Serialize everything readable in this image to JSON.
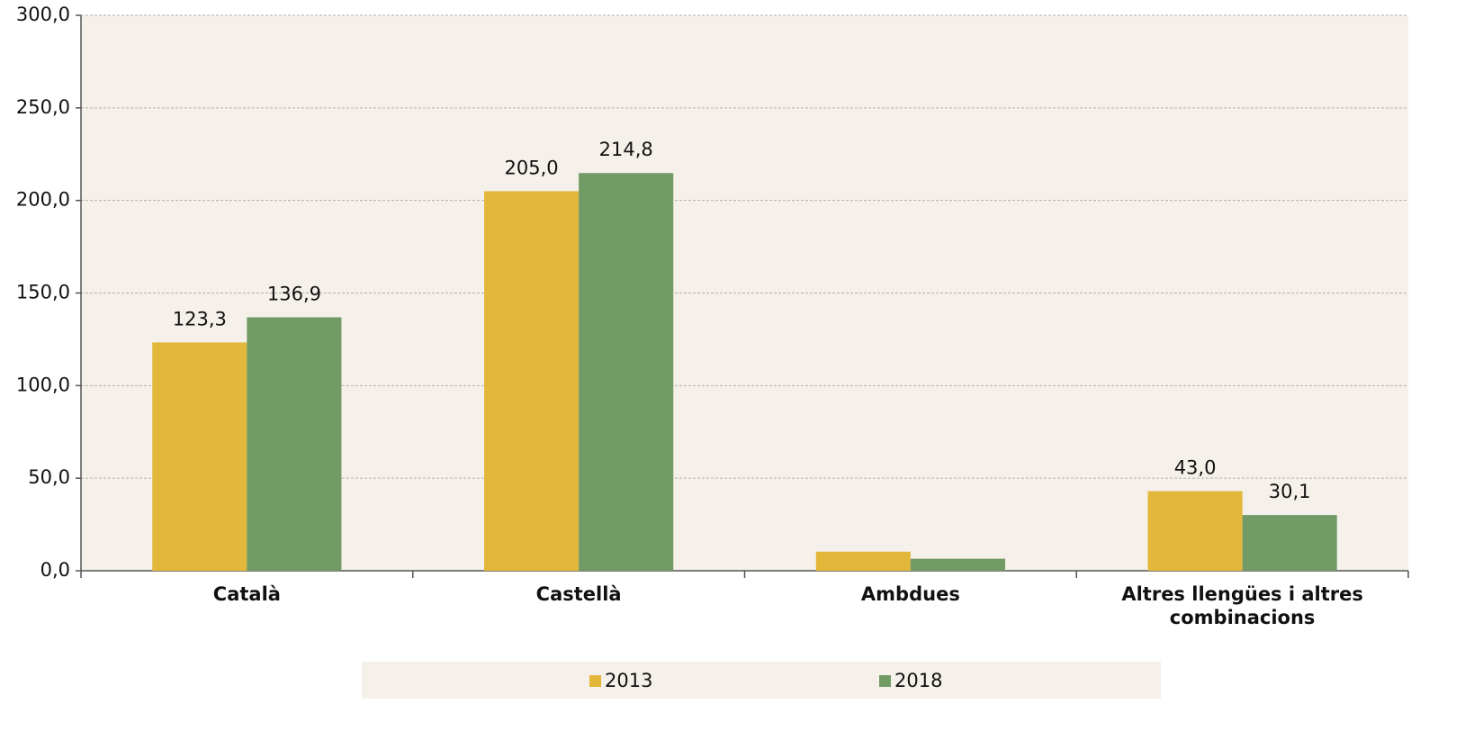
{
  "chart_data": {
    "type": "bar",
    "categories": [
      "Català",
      "Castellà",
      "Ambdues",
      "Altres llengües i altres combinacions"
    ],
    "series": [
      {
        "name": "2013",
        "color": "#e3b73a",
        "values": [
          123.3,
          205.0,
          10.3,
          43.0
        ],
        "value_labels": [
          "123,3",
          "205,0",
          null,
          "43,0"
        ]
      },
      {
        "name": "2018",
        "color": "#719a64",
        "values": [
          136.9,
          214.8,
          6.5,
          30.1
        ],
        "value_labels": [
          "136,9",
          "214,8",
          null,
          "30,1"
        ]
      }
    ],
    "ylim": [
      0,
      300
    ],
    "yticks": [
      {
        "value": 0,
        "label": "0,0"
      },
      {
        "value": 50,
        "label": "50,0"
      },
      {
        "value": 100,
        "label": "100,0"
      },
      {
        "value": 150,
        "label": "150,0"
      },
      {
        "value": 200,
        "label": "200,0"
      },
      {
        "value": 250,
        "label": "250,0"
      },
      {
        "value": 300,
        "label": "300,0"
      }
    ],
    "grid": true,
    "legend": "bottom"
  }
}
